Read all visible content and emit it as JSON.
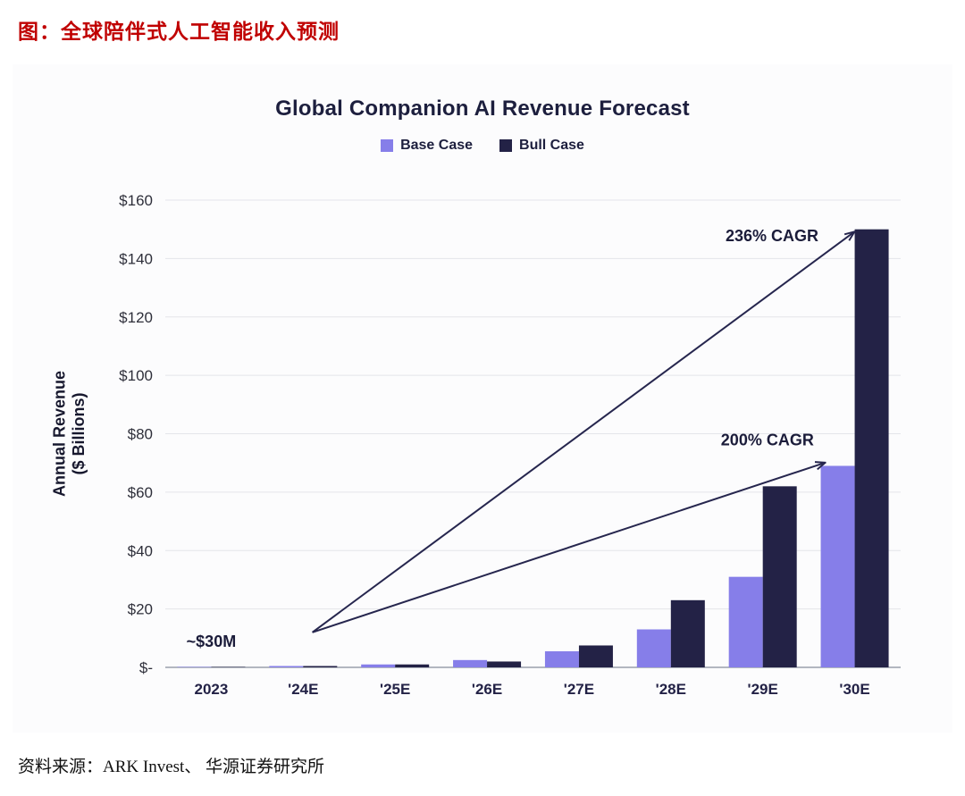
{
  "page": {
    "title_cn": "图：全球陪伴式人工智能收入预测",
    "source": "资料来源：ARK Invest、 华源证券研究所"
  },
  "chart_data": {
    "type": "bar",
    "title": "Global Companion AI Revenue Forecast",
    "ylabel_lines": [
      "Annual Revenue",
      "($ Billions)"
    ],
    "categories": [
      "2023",
      "'24E",
      "'25E",
      "'26E",
      "'27E",
      "'28E",
      "'29E",
      "'30E"
    ],
    "series": [
      {
        "name": "Base Case",
        "color": "#867ee9",
        "values": [
          0.03,
          0.15,
          1,
          2.5,
          5.5,
          13,
          31,
          69
        ]
      },
      {
        "name": "Bull Case",
        "color": "#232246",
        "values": [
          0.03,
          0.2,
          1,
          2,
          7.5,
          23,
          62,
          150
        ]
      }
    ],
    "ylim": [
      0,
      160
    ],
    "yticks": [
      0,
      20,
      40,
      60,
      80,
      100,
      120,
      140,
      160
    ],
    "ytick_labels": [
      "$-",
      "$20",
      "$40",
      "$60",
      "$80",
      "$100",
      "$120",
      "$140",
      "$160"
    ],
    "grid": true,
    "legend_position": "top",
    "annotation_color": "#26264e",
    "annotations": {
      "point_label": {
        "text": "~$30M",
        "cat": 0,
        "value": 7
      },
      "arrows": [
        {
          "label": "236% CAGR",
          "from": {
            "cat": 1.1,
            "value": 12
          },
          "to": {
            "cat": 6.99,
            "value": 149
          },
          "label_at": {
            "cat": 6.1,
            "value": 146
          }
        },
        {
          "label": "200% CAGR",
          "from": {
            "cat": 1.1,
            "value": 12
          },
          "to": {
            "cat": 6.67,
            "value": 70
          },
          "label_at": {
            "cat": 6.05,
            "value": 76
          }
        }
      ]
    }
  }
}
